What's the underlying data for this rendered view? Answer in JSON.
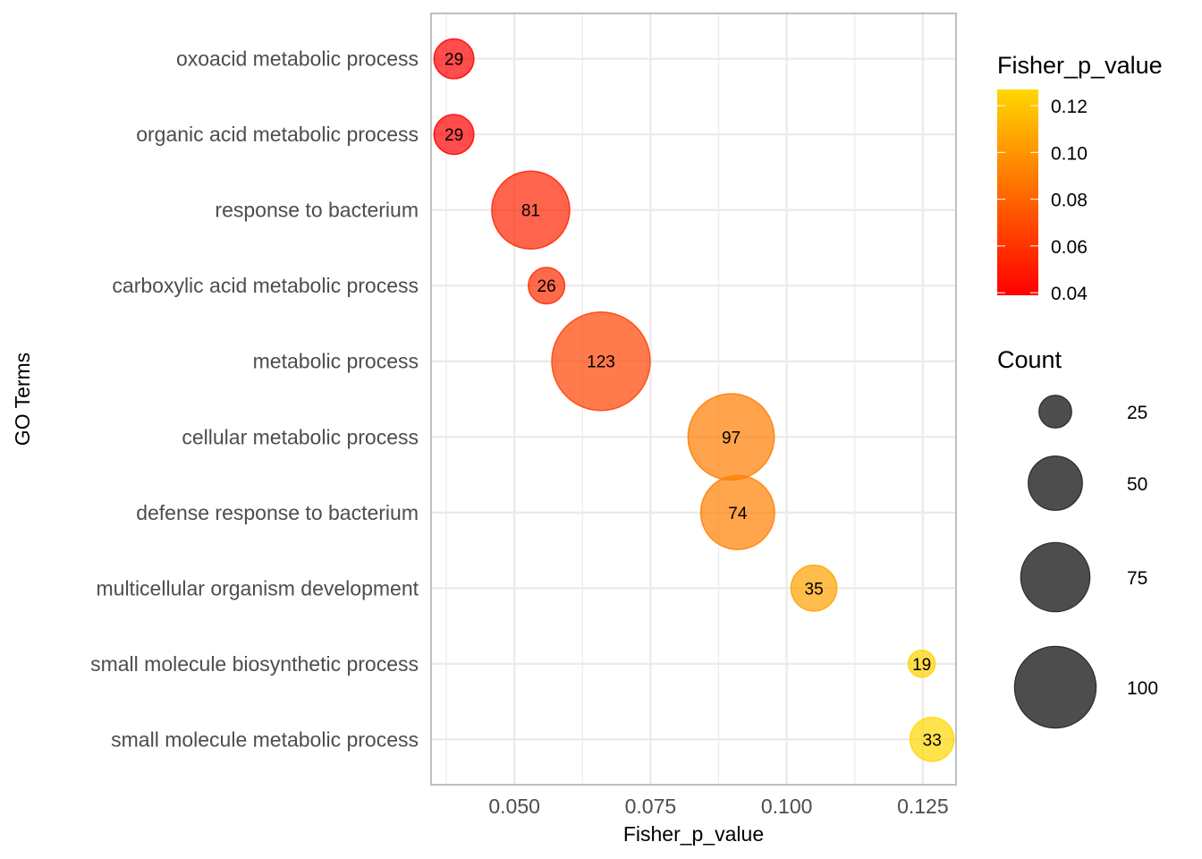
{
  "chart_data": {
    "type": "scatter",
    "subtype": "bubble",
    "title": "",
    "xlabel": "Fisher_p_value",
    "ylabel": "GO Terms",
    "xlim": [
      0.0347,
      0.1311
    ],
    "xticks": [
      0.05,
      0.075,
      0.1,
      0.125
    ],
    "xtick_labels": [
      "0.050",
      "0.075",
      "0.100",
      "0.125"
    ],
    "x_minor_ticks": [
      0.0375,
      0.0625,
      0.0875,
      0.1125
    ],
    "grid": true,
    "categories": [
      "oxoacid metabolic process",
      "organic acid metabolic process",
      "response to bacterium",
      "carboxylic acid metabolic process",
      "metabolic process",
      "cellular metabolic process",
      "defense response to bacterium",
      "multicellular organism development",
      "small molecule biosynthetic process",
      "small molecule metabolic process"
    ],
    "points": [
      {
        "term": "oxoacid metabolic process",
        "fisher_p_value": 0.0389,
        "count": 29
      },
      {
        "term": "organic acid metabolic process",
        "fisher_p_value": 0.0389,
        "count": 29
      },
      {
        "term": "response to bacterium",
        "fisher_p_value": 0.053,
        "count": 81
      },
      {
        "term": "carboxylic acid metabolic process",
        "fisher_p_value": 0.0559,
        "count": 26
      },
      {
        "term": "metabolic process",
        "fisher_p_value": 0.0659,
        "count": 123
      },
      {
        "term": "cellular metabolic process",
        "fisher_p_value": 0.0898,
        "count": 97
      },
      {
        "term": "defense response to bacterium",
        "fisher_p_value": 0.091,
        "count": 74
      },
      {
        "term": "multicellular organism development",
        "fisher_p_value": 0.105,
        "count": 35
      },
      {
        "term": "small molecule biosynthetic process",
        "fisher_p_value": 0.1248,
        "count": 19
      },
      {
        "term": "small molecule metabolic process",
        "fisher_p_value": 0.1267,
        "count": 33
      }
    ],
    "color_legend": {
      "title": "Fisher_p_value",
      "low_color": "#FF0000",
      "high_color": "#FFD700",
      "limits": [
        0.0389,
        0.1269
      ],
      "ticks": [
        0.04,
        0.06,
        0.08,
        0.1,
        0.12
      ],
      "tick_labels": [
        "0.04",
        "0.06",
        "0.08",
        "0.10",
        "0.12"
      ],
      "placement": "top-right"
    },
    "size_legend": {
      "title": "Count",
      "values": [
        25,
        50,
        75,
        100
      ],
      "labels": [
        "25",
        "50",
        "75",
        "100"
      ],
      "swatch_color": "#4D4D4D",
      "placement": "right"
    },
    "size_range_counts": [
      19,
      123
    ],
    "point_alpha": 0.7
  }
}
